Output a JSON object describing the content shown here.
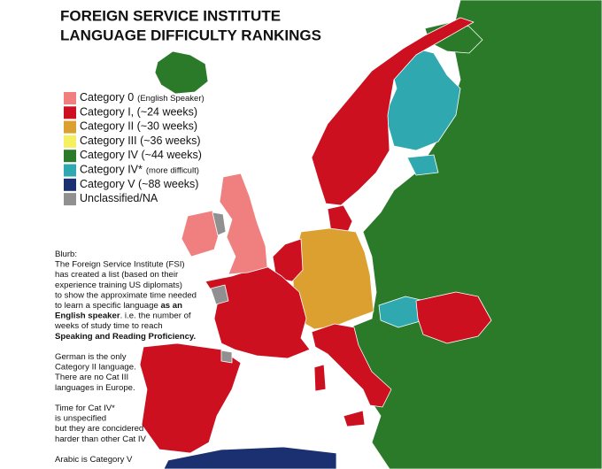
{
  "title": [
    "FOREIGN SERVICE INSTITUTE",
    "LANGUAGE DIFFICULTY RANKINGS"
  ],
  "legend": [
    {
      "label": "Category 0",
      "note": "(English Speaker)",
      "color": "#f08080"
    },
    {
      "label": "Category I, (~24 weeks)",
      "color": "#cc1020"
    },
    {
      "label": "Category II (~30 weeks)",
      "color": "#dca030"
    },
    {
      "label": "Category III (~36 weeks)",
      "color": "#f4f060"
    },
    {
      "label": "Category IV (~44 weeks)",
      "color": "#2a7a2a"
    },
    {
      "label": "Category IV*",
      "note": "(more difficult)",
      "color": "#30a8b0"
    },
    {
      "label": "Category V (~88 weeks)",
      "color": "#1a3070"
    },
    {
      "label": "Unclassified/NA",
      "color": "#909090"
    }
  ],
  "blurb": [
    [
      [
        {
          "text": "Blurb:"
        }
      ],
      [
        {
          "text": "The Foreign Service Institute (FSI)"
        }
      ],
      [
        {
          "text": "has created a list (based on their"
        }
      ],
      [
        {
          "text": "experience training US diplomats)"
        }
      ],
      [
        {
          "text": "to show the approximate time needed"
        }
      ],
      [
        {
          "text": "to learn a specific language "
        },
        {
          "text": "as an",
          "bold": true
        }
      ],
      [
        {
          "text": "English speaker",
          "bold": true
        },
        {
          "text": ". i.e. the number of"
        }
      ],
      [
        {
          "text": "weeks of study time to reach"
        }
      ],
      [
        {
          "text": "Speaking and Reading Proficiency.",
          "bold": true
        }
      ]
    ],
    [
      [
        {
          "text": "German is the only"
        }
      ],
      [
        {
          "text": "Category II language."
        }
      ],
      [
        {
          "text": "There are no Cat III"
        }
      ],
      [
        {
          "text": "languages in Europe."
        }
      ]
    ],
    [
      [
        {
          "text": "Time for Cat IV*"
        }
      ],
      [
        {
          "text": "is unspecified"
        }
      ],
      [
        {
          "text": "but they are concidered"
        }
      ],
      [
        {
          "text": "harder than other Cat IV"
        }
      ]
    ],
    [
      [
        {
          "text": "Arabic is Category V"
        }
      ]
    ]
  ]
}
